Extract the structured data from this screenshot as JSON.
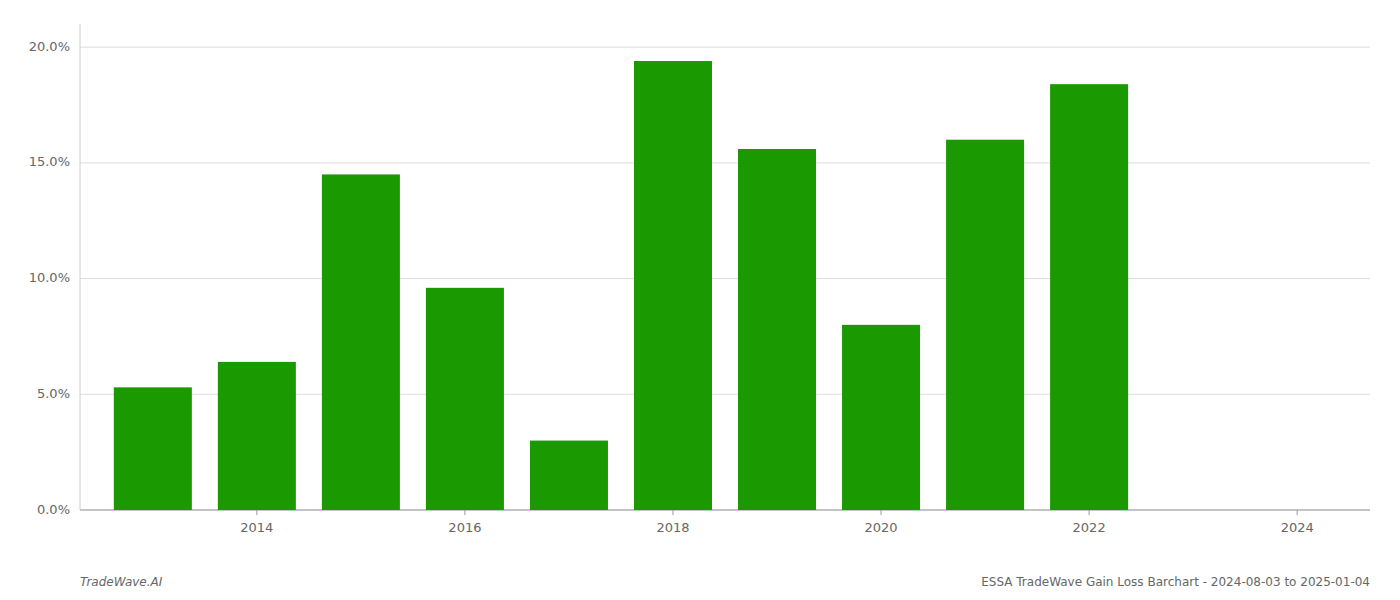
{
  "chart_data": {
    "type": "bar",
    "x": [
      2013,
      2014,
      2015,
      2016,
      2017,
      2018,
      2019,
      2020,
      2021,
      2022,
      2023
    ],
    "values": [
      0.053,
      0.064,
      0.145,
      0.096,
      0.03,
      0.194,
      0.156,
      0.08,
      0.16,
      0.184,
      0.0
    ],
    "color": "#1a9900",
    "xlim": [
      2012.3,
      2024.7
    ],
    "xticks": [
      2014,
      2016,
      2018,
      2020,
      2022,
      2024
    ],
    "ylim": [
      0,
      0.21
    ],
    "yticks": [
      {
        "value": 0.0,
        "label": "0.0%"
      },
      {
        "value": 0.05,
        "label": "5.0%"
      },
      {
        "value": 0.1,
        "label": "10.0%"
      },
      {
        "value": 0.15,
        "label": "15.0%"
      },
      {
        "value": 0.2,
        "label": "20.0%"
      }
    ],
    "grid": true,
    "annotations": [
      "TradeWave.AI",
      "ESSA TradeWave Gain Loss Barchart - 2024-08-03 to 2025-01-04"
    ]
  }
}
